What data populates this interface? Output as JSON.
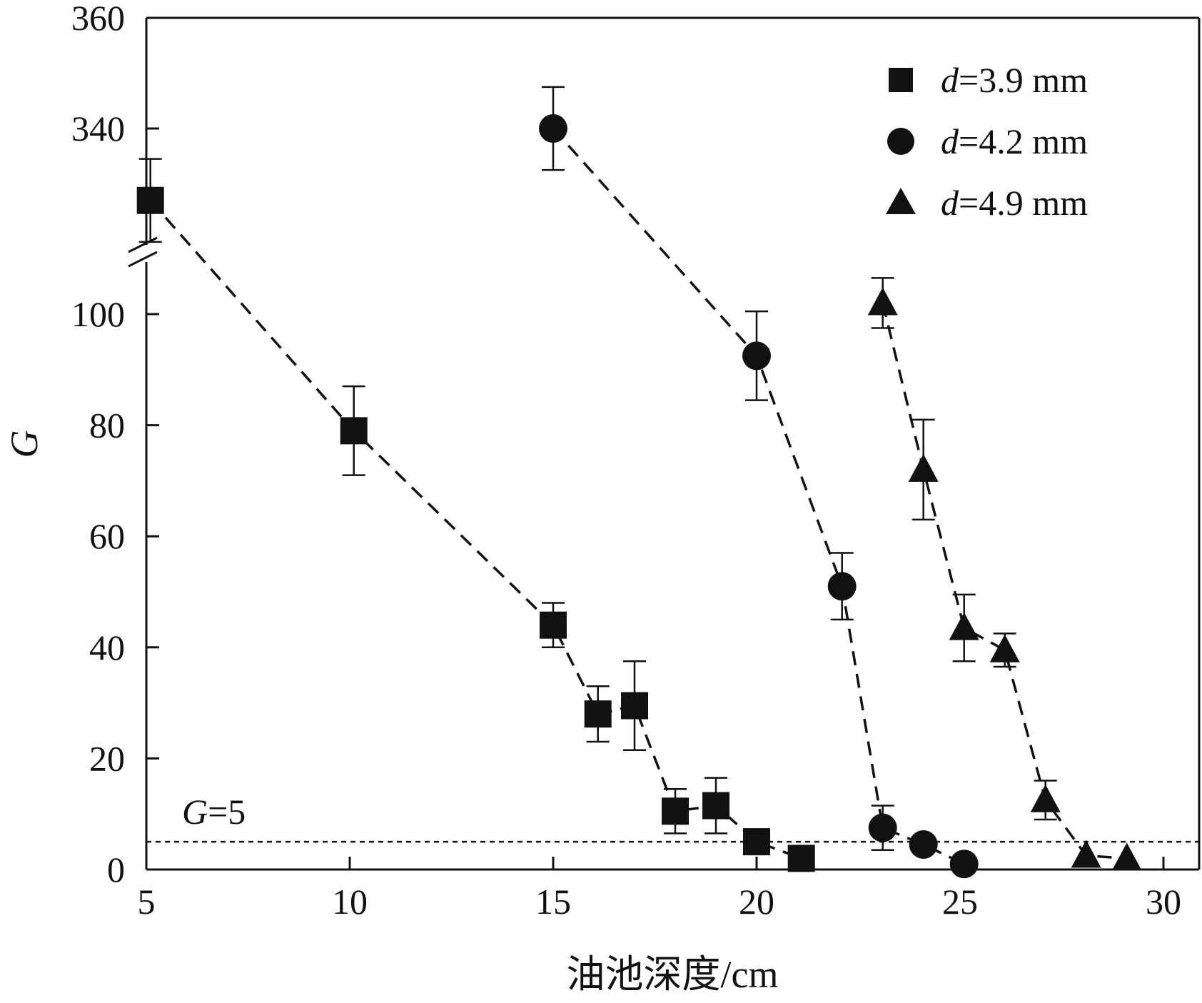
{
  "chart_data": {
    "type": "scatter",
    "xlabel": "油池深度/cm",
    "ylabel": "G",
    "xlim": [
      5,
      31
    ],
    "xticks": [
      5,
      10,
      15,
      20,
      25,
      30
    ],
    "x_tick_labels": [
      "5",
      "10",
      "15",
      "20",
      "25",
      "30"
    ],
    "y_axis_broken": true,
    "y_lower_range": [
      0,
      115
    ],
    "y_upper_range": [
      320,
      360
    ],
    "yticks_lower": [
      0,
      20,
      40,
      60,
      80,
      100
    ],
    "yticks_upper": [
      340,
      360
    ],
    "y_tick_labels": [
      "0",
      "20",
      "40",
      "60",
      "80",
      "100",
      "340",
      "360"
    ],
    "grid": false,
    "legend_position": "top-right",
    "reference_line": {
      "y": 5,
      "label_italic": "G",
      "label_rest": "=5"
    },
    "series": [
      {
        "name": "d=3.9 mm",
        "legend_italic": "d",
        "legend_rest": "=3.9 mm",
        "marker": "square",
        "points": [
          {
            "x": 5.1,
            "y": 327,
            "err": 7.5
          },
          {
            "x": 10.1,
            "y": 79,
            "err": 8
          },
          {
            "x": 15.0,
            "y": 44,
            "err": 4
          },
          {
            "x": 16.1,
            "y": 28,
            "err": 5
          },
          {
            "x": 17.0,
            "y": 29.5,
            "err": 8
          },
          {
            "x": 18.0,
            "y": 10.5,
            "err": 4
          },
          {
            "x": 19.0,
            "y": 11.5,
            "err": 5
          },
          {
            "x": 20.0,
            "y": 5,
            "err": 0
          },
          {
            "x": 21.1,
            "y": 2,
            "err": 0
          }
        ]
      },
      {
        "name": "d=4.2 mm",
        "legend_italic": "d",
        "legend_rest": "=4.2 mm",
        "marker": "circle",
        "points": [
          {
            "x": 15.0,
            "y": 340,
            "err": 7.5
          },
          {
            "x": 20.0,
            "y": 92.5,
            "err": 8
          },
          {
            "x": 22.1,
            "y": 51,
            "err": 6
          },
          {
            "x": 23.1,
            "y": 7.5,
            "err": 4
          },
          {
            "x": 24.1,
            "y": 4.5,
            "err": 0
          },
          {
            "x": 25.1,
            "y": 1,
            "err": 0
          }
        ]
      },
      {
        "name": "d=4.9 mm",
        "legend_italic": "d",
        "legend_rest": "=4.9 mm",
        "marker": "triangle",
        "points": [
          {
            "x": 23.1,
            "y": 102,
            "err": 4.5
          },
          {
            "x": 24.1,
            "y": 72,
            "err": 9
          },
          {
            "x": 25.1,
            "y": 43.5,
            "err": 6
          },
          {
            "x": 26.1,
            "y": 39.5,
            "err": 3
          },
          {
            "x": 27.1,
            "y": 12.5,
            "err": 3.5
          },
          {
            "x": 28.1,
            "y": 2.5,
            "err": 0
          },
          {
            "x": 29.1,
            "y": 2,
            "err": 0
          }
        ]
      }
    ]
  }
}
